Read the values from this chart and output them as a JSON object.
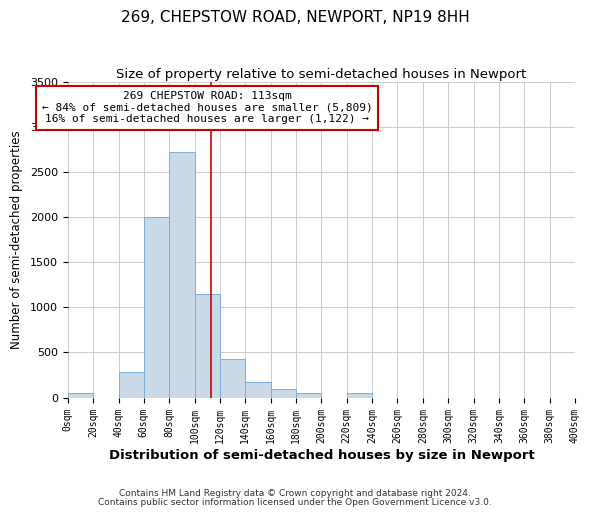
{
  "title": "269, CHEPSTOW ROAD, NEWPORT, NP19 8HH",
  "subtitle": "Size of property relative to semi-detached houses in Newport",
  "xlabel": "Distribution of semi-detached houses by size in Newport",
  "ylabel": "Number of semi-detached properties",
  "bin_edges": [
    0,
    20,
    40,
    60,
    80,
    100,
    120,
    140,
    160,
    180,
    200,
    220,
    240,
    260,
    280,
    300,
    320,
    340,
    360,
    380,
    400
  ],
  "bin_counts": [
    50,
    0,
    280,
    2000,
    2720,
    1150,
    430,
    175,
    100,
    55,
    0,
    55,
    0,
    0,
    0,
    0,
    0,
    0,
    0,
    0
  ],
  "bar_color": "#c9d9e8",
  "bar_edge_color": "#7bafd4",
  "property_line_x": 113,
  "property_line_color": "#cc0000",
  "annotation_box_edge_color": "#cc0000",
  "annotation_title": "269 CHEPSTOW ROAD: 113sqm",
  "annotation_line1": "← 84% of semi-detached houses are smaller (5,809)",
  "annotation_line2": "16% of semi-detached houses are larger (1,122) →",
  "ylim": [
    0,
    3500
  ],
  "xlim": [
    0,
    400
  ],
  "grid_color": "#cccccc",
  "footnote1": "Contains HM Land Registry data © Crown copyright and database right 2024.",
  "footnote2": "Contains public sector information licensed under the Open Government Licence v3.0.",
  "title_fontsize": 11,
  "subtitle_fontsize": 9.5,
  "xlabel_fontsize": 9.5,
  "ylabel_fontsize": 8.5,
  "tick_label_fontsize": 7,
  "annotation_fontsize": 8,
  "footnote_fontsize": 6.5
}
